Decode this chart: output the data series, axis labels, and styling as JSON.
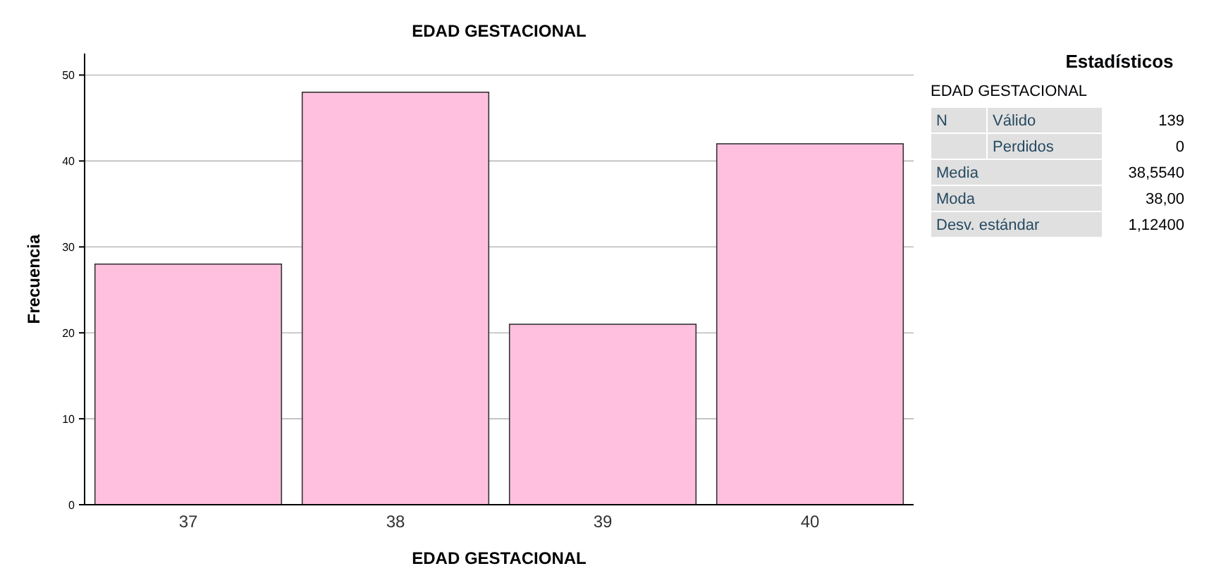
{
  "chart_data": [
    {
      "type": "bar",
      "title": "EDAD GESTACIONAL",
      "xlabel": "EDAD GESTACIONAL",
      "ylabel": "Frecuencia",
      "categories": [
        "37",
        "38",
        "39",
        "40"
      ],
      "values": [
        28,
        48,
        21,
        42
      ],
      "color": "#ffc0e0",
      "ylim": [
        0,
        52.5
      ],
      "yticks": [
        0,
        10,
        20,
        30,
        40,
        50
      ],
      "grid": "y"
    },
    {
      "type": "other",
      "title": "Estadísticos",
      "subtitle": "EDAD GESTACIONAL",
      "annotations": [
        "N",
        "Válido",
        "139",
        "Perdidos",
        "0",
        "Media",
        "38,5540",
        "Moda",
        "38,00",
        "Desv. estándar",
        "1,12400"
      ]
    }
  ]
}
